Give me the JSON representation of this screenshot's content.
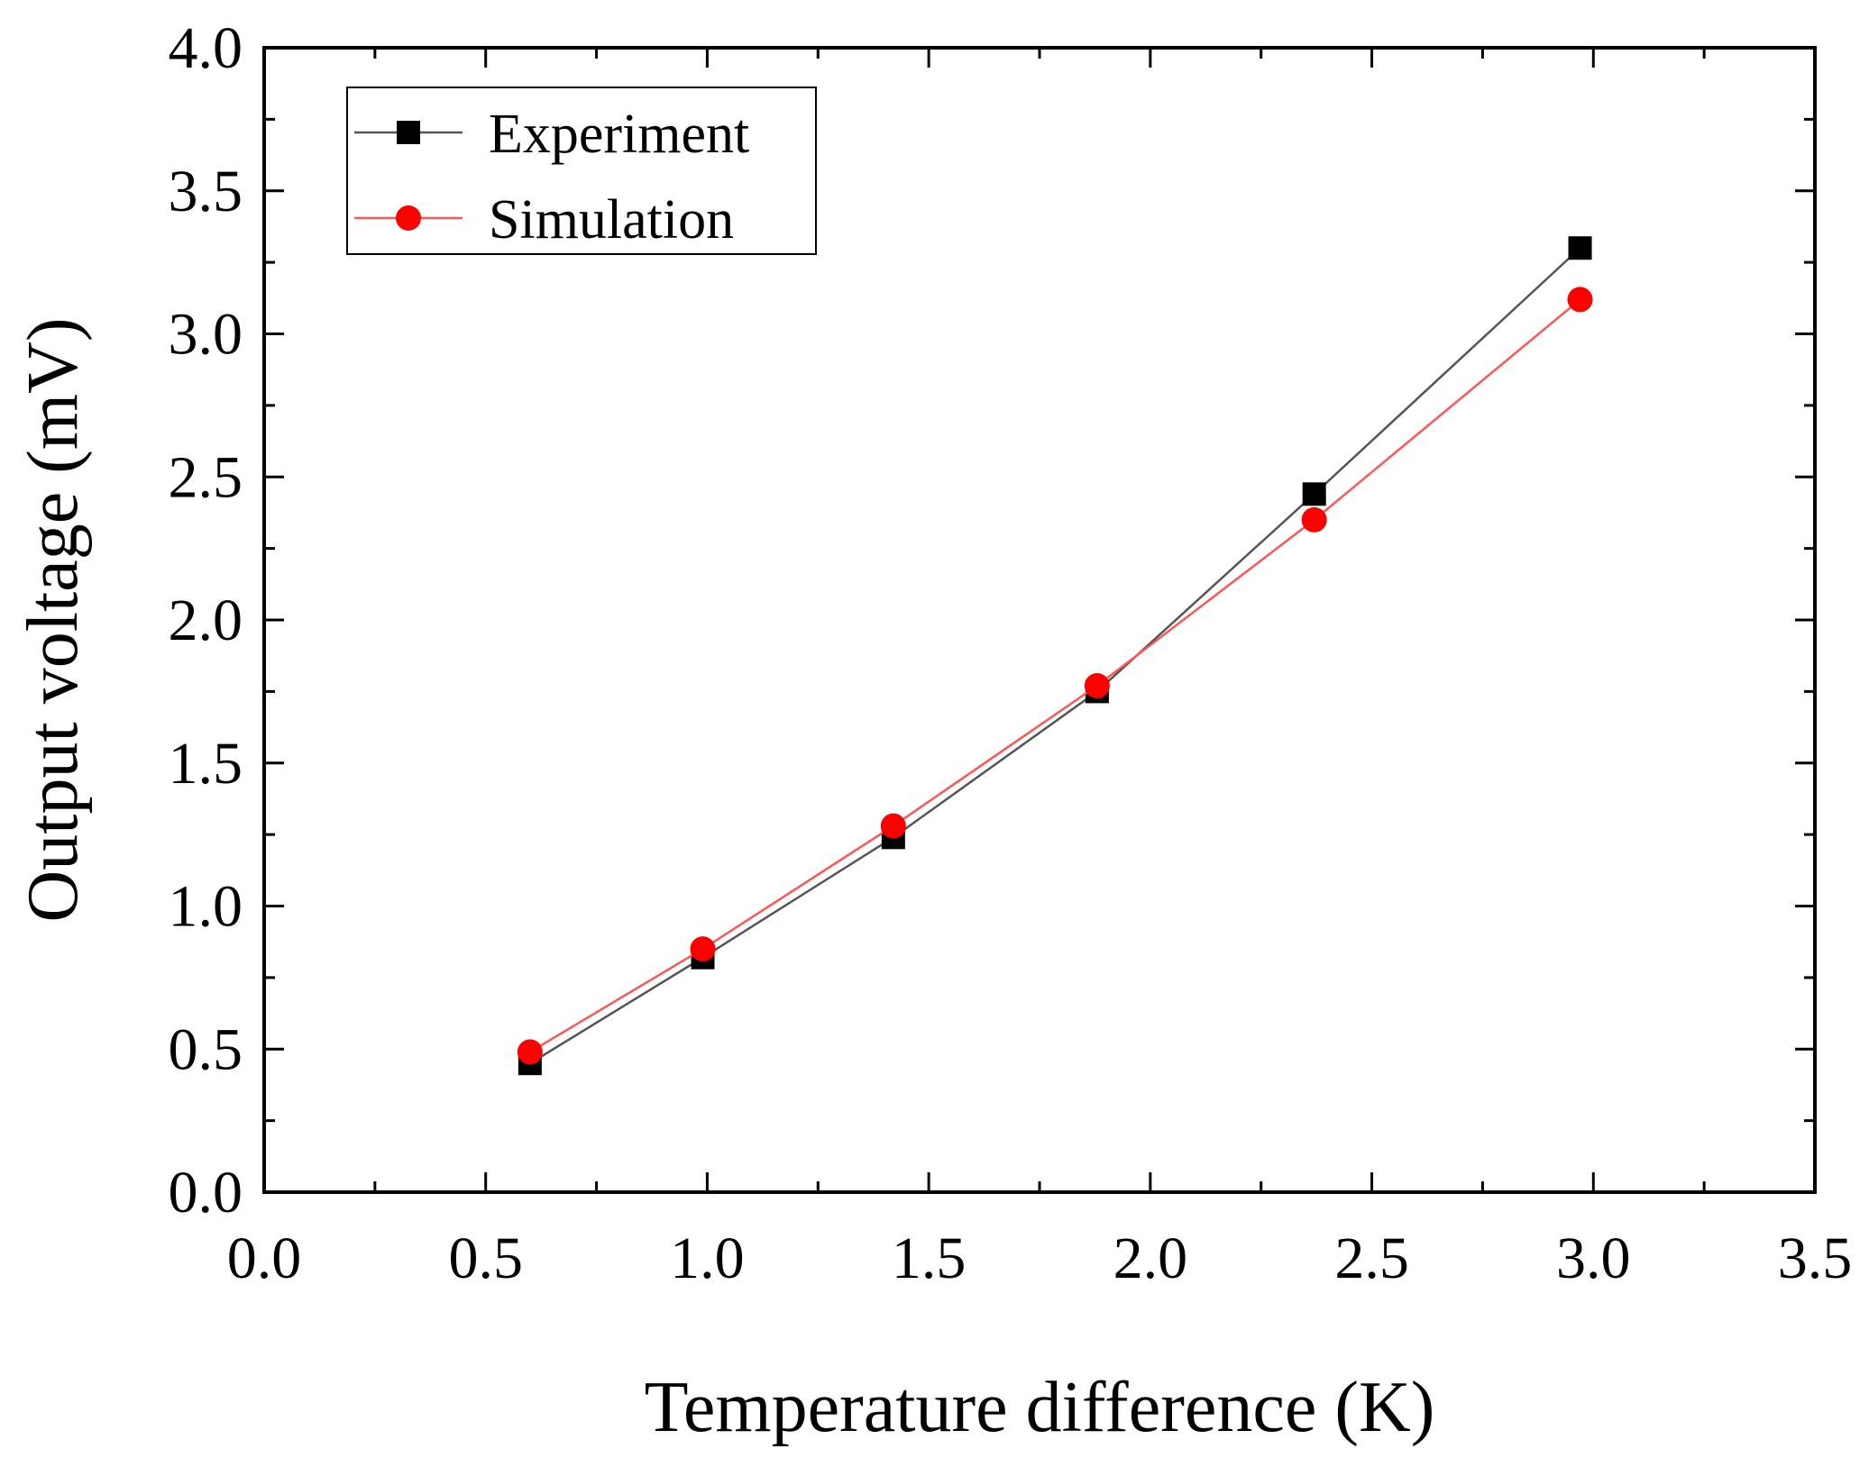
{
  "chart_data": {
    "type": "line",
    "title": "",
    "xlabel": "Temperature difference (K)",
    "ylabel": "Output voltage (mV)",
    "xlim": [
      0.0,
      3.5
    ],
    "ylim": [
      0.0,
      4.0
    ],
    "x_major_ticks": [
      0.0,
      0.5,
      1.0,
      1.5,
      2.0,
      2.5,
      3.0,
      3.5
    ],
    "y_major_ticks": [
      0.0,
      0.5,
      1.0,
      1.5,
      2.0,
      2.5,
      3.0,
      3.5,
      4.0
    ],
    "x_tick_labels": [
      "0.0",
      "0.5",
      "1.0",
      "1.5",
      "2.0",
      "2.5",
      "3.0",
      "3.5"
    ],
    "y_tick_labels": [
      "0.0",
      "0.5",
      "1.0",
      "1.5",
      "2.0",
      "2.5",
      "3.0",
      "3.5",
      "4.0"
    ],
    "grid": false,
    "legend_position": "top-left",
    "series": [
      {
        "name": "Experiment",
        "marker": "square",
        "color": "#000000",
        "line_color": "#555555",
        "x": [
          0.6,
          0.99,
          1.42,
          1.88,
          2.37,
          2.97
        ],
        "y": [
          0.45,
          0.82,
          1.24,
          1.75,
          2.44,
          3.3
        ]
      },
      {
        "name": "Simulation",
        "marker": "circle",
        "color": "#ff0000",
        "line_color": "#ff5555",
        "x": [
          0.6,
          0.99,
          1.42,
          1.88,
          2.37,
          2.97
        ],
        "y": [
          0.49,
          0.85,
          1.28,
          1.77,
          2.35,
          3.12
        ]
      }
    ]
  }
}
